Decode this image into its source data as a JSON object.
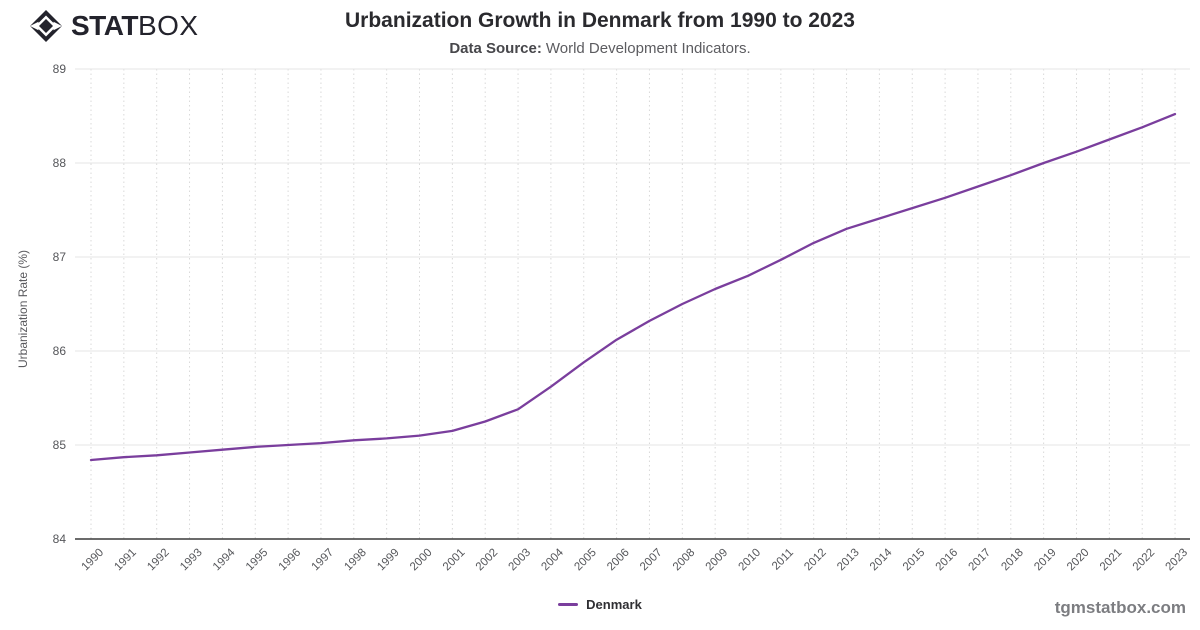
{
  "header": {
    "logo": {
      "icon": "diamond-gem-icon",
      "text_bold": "STAT",
      "text_light": "BOX"
    },
    "title": "Urbanization Growth in Denmark from 1990 to 2023",
    "data_source_label": "Data Source:",
    "data_source_value": "World Development Indicators."
  },
  "legend": {
    "items": [
      {
        "label": "Denmark",
        "color": "#7a3e9d"
      }
    ]
  },
  "watermark": "tgmstatbox.com",
  "colors": {
    "line": "#7a3e9d",
    "axis": "#3a3a3a",
    "grid_solid": "#e6e6e6",
    "grid_dotted": "#d9d9d9",
    "tick_text": "#55565a",
    "title_text": "#2a2a2e",
    "logo_text": "#23232c"
  },
  "chart_data": {
    "type": "line",
    "title": "Urbanization Growth in Denmark from 1990 to 2023",
    "subtitle": "Data Source: World Development Indicators.",
    "xlabel": "",
    "ylabel": "Urbanization Rate (%)",
    "ylim": [
      84,
      89
    ],
    "yticks": [
      84,
      85,
      86,
      87,
      88,
      89
    ],
    "grid": true,
    "legend_position": "bottom",
    "categories": [
      "1990",
      "1991",
      "1992",
      "1993",
      "1994",
      "1995",
      "1996",
      "1997",
      "1998",
      "1999",
      "2000",
      "2001",
      "2002",
      "2003",
      "2004",
      "2005",
      "2006",
      "2007",
      "2008",
      "2009",
      "2010",
      "2011",
      "2012",
      "2013",
      "2014",
      "2015",
      "2016",
      "2017",
      "2018",
      "2019",
      "2020",
      "2021",
      "2022",
      "2023"
    ],
    "series": [
      {
        "name": "Denmark",
        "color": "#7a3e9d",
        "values": [
          84.84,
          84.87,
          84.89,
          84.92,
          84.95,
          84.98,
          85.0,
          85.02,
          85.05,
          85.07,
          85.1,
          85.15,
          85.25,
          85.38,
          85.62,
          85.88,
          86.12,
          86.32,
          86.5,
          86.66,
          86.8,
          86.97,
          87.15,
          87.3,
          87.41,
          87.52,
          87.63,
          87.75,
          87.87,
          88.0,
          88.12,
          88.25,
          88.38,
          88.52
        ]
      }
    ]
  }
}
